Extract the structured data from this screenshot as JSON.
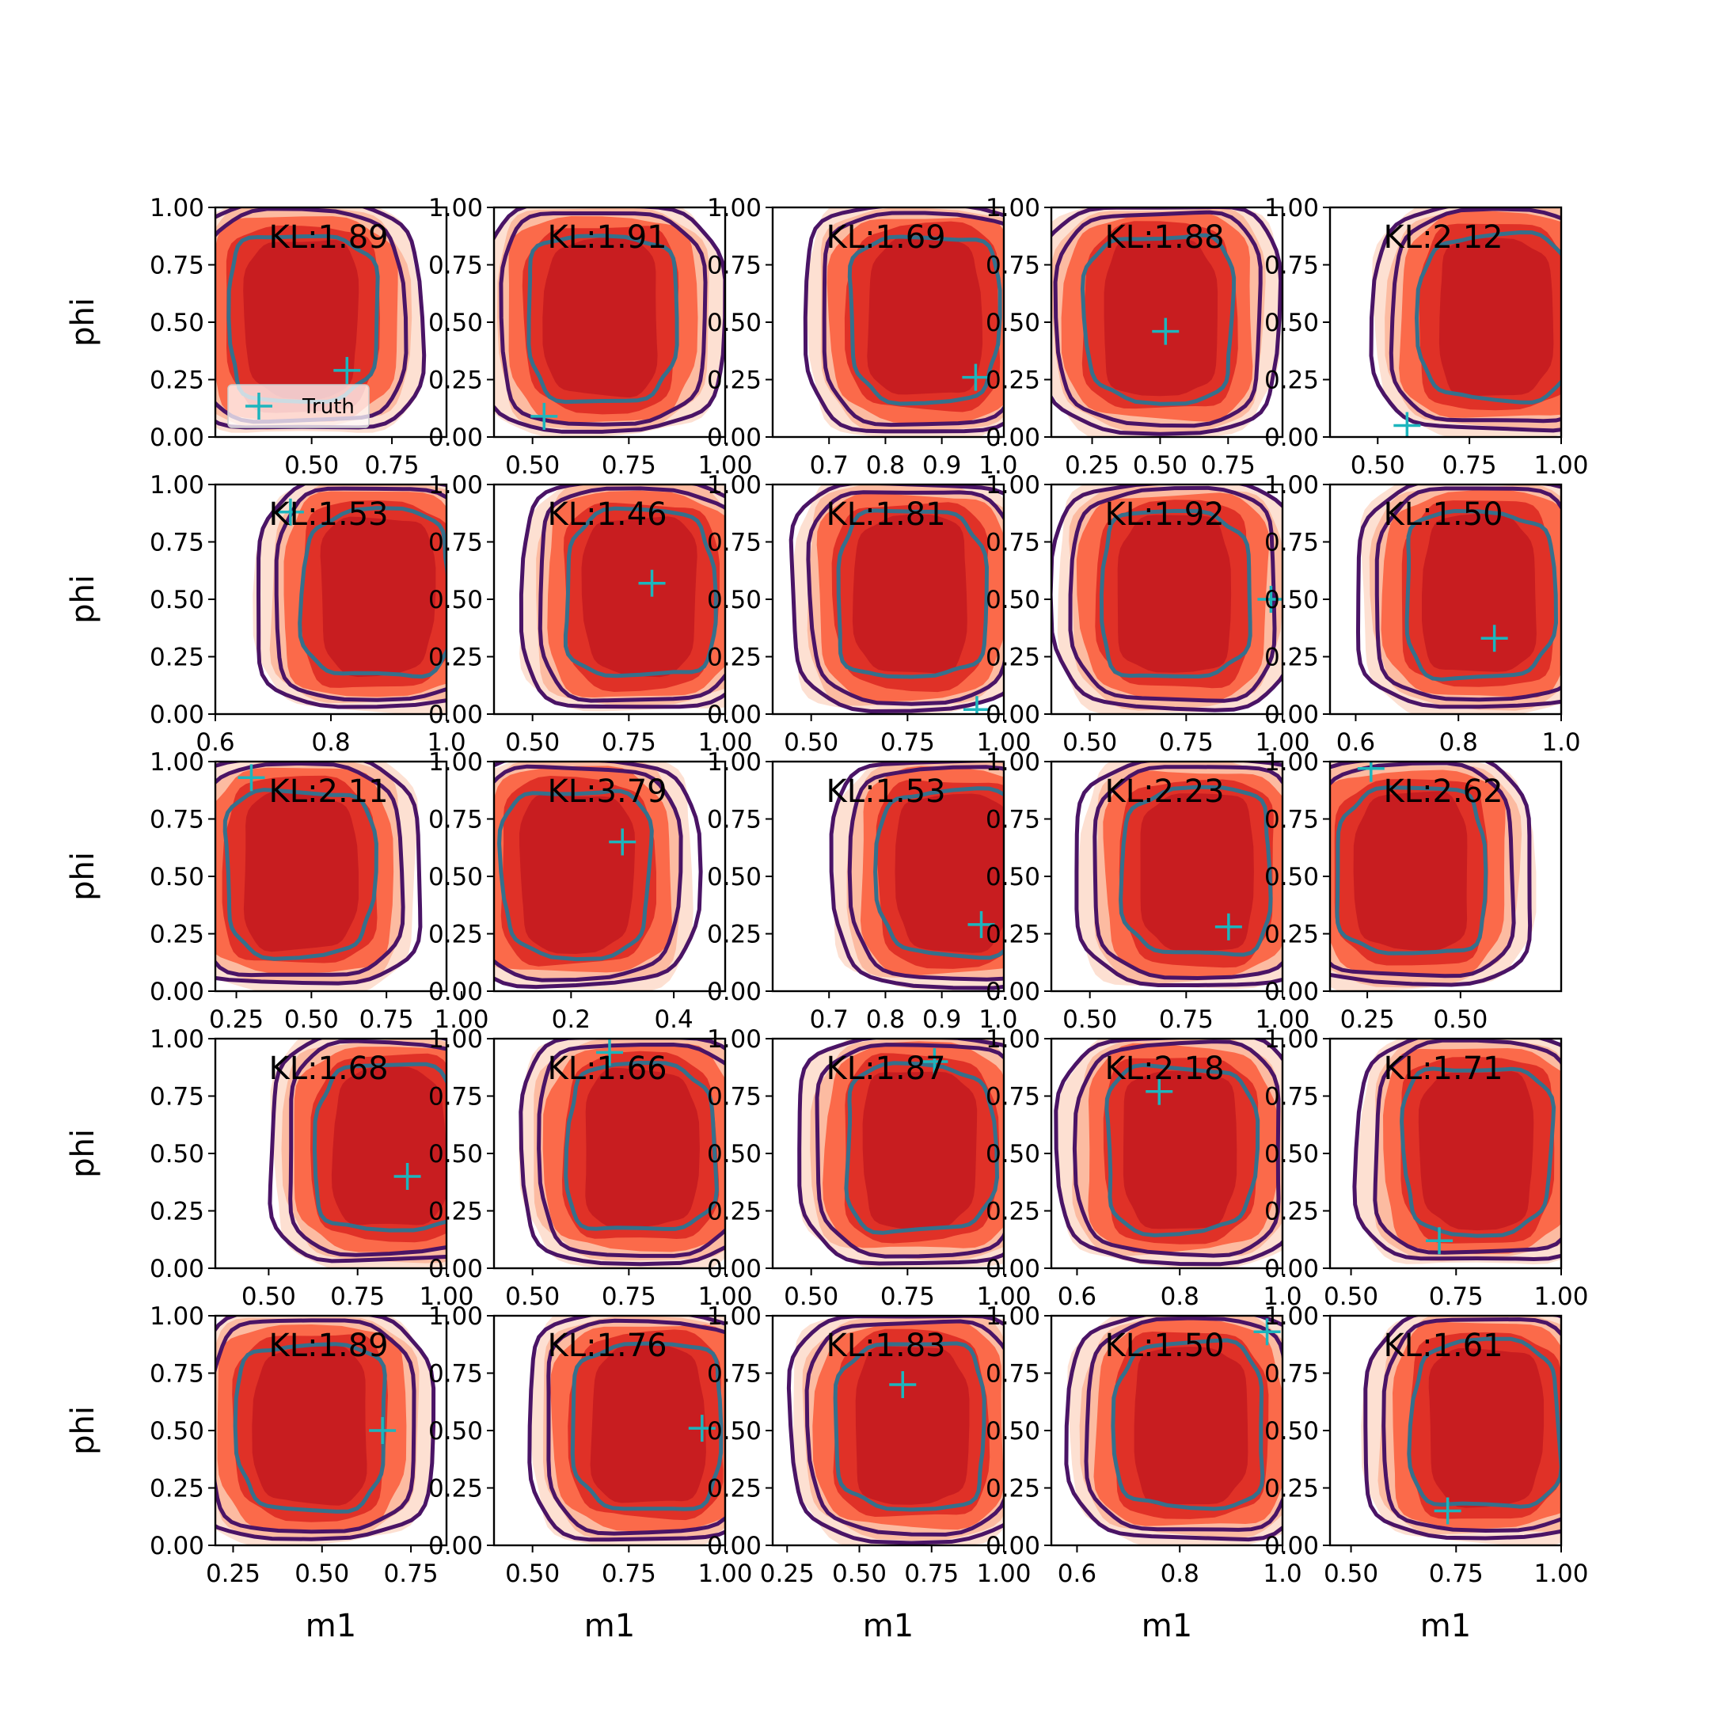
{
  "figure": {
    "xlabel": "m1",
    "ylabel": "phi",
    "legend_label": "Truth",
    "colors": {
      "fill_levels": [
        "#fde0d2",
        "#fcbba1",
        "#fb6a4a",
        "#e03127",
        "#c81d20"
      ],
      "outer_contours": "#4a1466",
      "inner_contour": "#35708c",
      "truth_marker": "#1cb5bd"
    }
  },
  "chart_data": [
    {
      "type": "contour",
      "panel": "1-1",
      "kl_label": "KL:1.89",
      "xlim": [
        0.2,
        0.92
      ],
      "ylim": [
        0,
        1
      ],
      "xticks": [
        "0.50",
        "0.75"
      ],
      "yticks": [
        "0.00",
        "0.25",
        "0.50",
        "0.75",
        "1.00"
      ],
      "truth": {
        "x": 0.61,
        "y": 0.29
      },
      "center": {
        "x": 0.47,
        "y": 0.52
      },
      "legend": "lower-left"
    },
    {
      "type": "contour",
      "panel": "1-2",
      "kl_label": "KL:1.91",
      "xlim": [
        0.4,
        1.0
      ],
      "ylim": [
        0,
        1
      ],
      "xticks": [
        "0.50",
        "0.75",
        "1.00"
      ],
      "yticks": [
        "0.00",
        "0.25",
        "0.50",
        "0.75",
        "1.00"
      ],
      "truth": {
        "x": 0.53,
        "y": 0.09
      },
      "center": {
        "x": 0.68,
        "y": 0.52
      }
    },
    {
      "type": "contour",
      "panel": "1-3",
      "kl_label": "KL:1.69",
      "xlim": [
        0.6,
        1.01
      ],
      "ylim": [
        0,
        1
      ],
      "xticks": [
        "0.7",
        "0.8",
        "0.9",
        "1.0"
      ],
      "yticks": [
        "0.00",
        "0.25",
        "0.50",
        "0.75",
        "1.00"
      ],
      "truth": {
        "x": 0.96,
        "y": 0.26
      },
      "center": {
        "x": 0.87,
        "y": 0.52
      }
    },
    {
      "type": "contour",
      "panel": "1-4",
      "kl_label": "KL:1.88",
      "xlim": [
        0.1,
        0.95
      ],
      "ylim": [
        0,
        1
      ],
      "xticks": [
        "0.25",
        "0.50",
        "0.75"
      ],
      "yticks": [
        "0.00",
        "0.25",
        "0.50",
        "0.75",
        "1.00"
      ],
      "truth": {
        "x": 0.52,
        "y": 0.46
      },
      "center": {
        "x": 0.5,
        "y": 0.52
      }
    },
    {
      "type": "contour",
      "panel": "1-5",
      "kl_label": "KL:2.12",
      "xlim": [
        0.37,
        1.0
      ],
      "ylim": [
        0,
        1
      ],
      "xticks": [
        "0.50",
        "0.75",
        "1.00"
      ],
      "yticks": [
        "0.00",
        "0.25",
        "0.50",
        "0.75",
        "1.00"
      ],
      "truth": {
        "x": 0.58,
        "y": 0.05
      },
      "center": {
        "x": 0.82,
        "y": 0.52
      }
    },
    {
      "type": "contour",
      "panel": "2-1",
      "kl_label": "KL:1.53",
      "xlim": [
        0.6,
        1.0
      ],
      "ylim": [
        0,
        1
      ],
      "xticks": [
        "0.6",
        "0.8",
        "1.0"
      ],
      "yticks": [
        "0.00",
        "0.25",
        "0.50",
        "0.75",
        "1.00"
      ],
      "truth": {
        "x": 0.73,
        "y": 0.88
      },
      "center": {
        "x": 0.88,
        "y": 0.52
      }
    },
    {
      "type": "contour",
      "panel": "2-2",
      "kl_label": "KL:1.46",
      "xlim": [
        0.4,
        1.0
      ],
      "ylim": [
        0,
        1
      ],
      "xticks": [
        "0.50",
        "0.75",
        "1.00"
      ],
      "yticks": [
        "0.00",
        "0.25",
        "0.50",
        "0.75",
        "1.00"
      ],
      "truth": {
        "x": 0.81,
        "y": 0.57
      },
      "center": {
        "x": 0.78,
        "y": 0.52
      }
    },
    {
      "type": "contour",
      "panel": "2-3",
      "kl_label": "KL:1.81",
      "xlim": [
        0.4,
        1.0
      ],
      "ylim": [
        0,
        1
      ],
      "xticks": [
        "0.50",
        "0.75",
        "1.00"
      ],
      "yticks": [
        "0.00",
        "0.25",
        "0.50",
        "0.75",
        "1.00"
      ],
      "truth": {
        "x": 0.93,
        "y": 0.02
      },
      "center": {
        "x": 0.76,
        "y": 0.52
      }
    },
    {
      "type": "contour",
      "panel": "2-4",
      "kl_label": "KL:1.92",
      "xlim": [
        0.4,
        1.0
      ],
      "ylim": [
        0,
        1
      ],
      "xticks": [
        "0.50",
        "0.75",
        "1.00"
      ],
      "yticks": [
        "0.00",
        "0.25",
        "0.50",
        "0.75",
        "1.00"
      ],
      "truth": {
        "x": 0.97,
        "y": 0.5
      },
      "center": {
        "x": 0.72,
        "y": 0.52
      }
    },
    {
      "type": "contour",
      "panel": "2-5",
      "kl_label": "KL:1.50",
      "xlim": [
        0.55,
        1.0
      ],
      "ylim": [
        0,
        1
      ],
      "xticks": [
        "0.6",
        "0.8",
        "1.0"
      ],
      "yticks": [
        "0.00",
        "0.25",
        "0.50",
        "0.75",
        "1.00"
      ],
      "truth": {
        "x": 0.87,
        "y": 0.33
      },
      "center": {
        "x": 0.84,
        "y": 0.52
      }
    },
    {
      "type": "contour",
      "panel": "3-1",
      "kl_label": "KL:2.11",
      "xlim": [
        0.18,
        0.95
      ],
      "ylim": [
        0,
        1
      ],
      "xticks": [
        "0.25",
        "0.50",
        "0.75",
        "1.00"
      ],
      "yticks": [
        "0.00",
        "0.25",
        "0.50",
        "0.75",
        "1.00"
      ],
      "truth": {
        "x": 0.3,
        "y": 0.93
      },
      "center": {
        "x": 0.46,
        "y": 0.52
      }
    },
    {
      "type": "contour",
      "panel": "3-2",
      "kl_label": "KL:3.79",
      "xlim": [
        0.05,
        0.5
      ],
      "ylim": [
        0,
        1
      ],
      "xticks": [
        "0.2",
        "0.4"
      ],
      "yticks": [
        "0.00",
        "0.25",
        "0.50",
        "0.75",
        "1.00"
      ],
      "truth": {
        "x": 0.3,
        "y": 0.65
      },
      "center": {
        "x": 0.21,
        "y": 0.52
      }
    },
    {
      "type": "contour",
      "panel": "3-3",
      "kl_label": "KL:1.53",
      "xlim": [
        0.6,
        1.01
      ],
      "ylim": [
        0,
        1
      ],
      "xticks": [
        "0.7",
        "0.8",
        "0.9",
        "1.0"
      ],
      "yticks": [
        "0.00",
        "0.25",
        "0.50",
        "0.75",
        "1.00"
      ],
      "truth": {
        "x": 0.97,
        "y": 0.29
      },
      "center": {
        "x": 0.92,
        "y": 0.52
      }
    },
    {
      "type": "contour",
      "panel": "3-4",
      "kl_label": "KL:2.23",
      "xlim": [
        0.4,
        1.0
      ],
      "ylim": [
        0,
        1
      ],
      "xticks": [
        "0.50",
        "0.75",
        "1.00"
      ],
      "yticks": [
        "0.00",
        "0.25",
        "0.50",
        "0.75",
        "1.00"
      ],
      "truth": {
        "x": 0.86,
        "y": 0.28
      },
      "center": {
        "x": 0.78,
        "y": 0.52
      }
    },
    {
      "type": "contour",
      "panel": "3-5",
      "kl_label": "KL:2.62",
      "xlim": [
        0.15,
        0.77
      ],
      "ylim": [
        0,
        1
      ],
      "xticks": [
        "0.25",
        "0.50"
      ],
      "yticks": [
        "0.00",
        "0.25",
        "0.50",
        "0.75",
        "1.00"
      ],
      "truth": {
        "x": 0.26,
        "y": 0.97
      },
      "center": {
        "x": 0.37,
        "y": 0.52
      }
    },
    {
      "type": "contour",
      "panel": "4-1",
      "kl_label": "KL:1.68",
      "xlim": [
        0.35,
        1.0
      ],
      "ylim": [
        0,
        1
      ],
      "xticks": [
        "0.50",
        "0.75",
        "1.00"
      ],
      "yticks": [
        "0.00",
        "0.25",
        "0.50",
        "0.75",
        "1.00"
      ],
      "truth": {
        "x": 0.89,
        "y": 0.4
      },
      "center": {
        "x": 0.84,
        "y": 0.52
      }
    },
    {
      "type": "contour",
      "panel": "4-2",
      "kl_label": "KL:1.66",
      "xlim": [
        0.4,
        1.0
      ],
      "ylim": [
        0,
        1
      ],
      "xticks": [
        "0.50",
        "0.75",
        "1.00"
      ],
      "yticks": [
        "0.00",
        "0.25",
        "0.50",
        "0.75",
        "1.00"
      ],
      "truth": {
        "x": 0.7,
        "y": 0.94
      },
      "center": {
        "x": 0.78,
        "y": 0.52
      }
    },
    {
      "type": "contour",
      "panel": "4-3",
      "kl_label": "KL:1.87",
      "xlim": [
        0.4,
        1.0
      ],
      "ylim": [
        0,
        1
      ],
      "xticks": [
        "0.50",
        "0.75",
        "1.00"
      ],
      "yticks": [
        "0.00",
        "0.25",
        "0.50",
        "0.75",
        "1.00"
      ],
      "truth": {
        "x": 0.82,
        "y": 0.9
      },
      "center": {
        "x": 0.78,
        "y": 0.52
      }
    },
    {
      "type": "contour",
      "panel": "4-4",
      "kl_label": "KL:2.18",
      "xlim": [
        0.55,
        1.0
      ],
      "ylim": [
        0,
        1
      ],
      "xticks": [
        "0.6",
        "0.8",
        "1.0"
      ],
      "yticks": [
        "0.00",
        "0.25",
        "0.50",
        "0.75",
        "1.00"
      ],
      "truth": {
        "x": 0.76,
        "y": 0.77
      },
      "center": {
        "x": 0.8,
        "y": 0.52
      }
    },
    {
      "type": "contour",
      "panel": "4-5",
      "kl_label": "KL:1.71",
      "xlim": [
        0.45,
        1.0
      ],
      "ylim": [
        0,
        1
      ],
      "xticks": [
        "0.50",
        "0.75",
        "1.00"
      ],
      "yticks": [
        "0.00",
        "0.25",
        "0.50",
        "0.75",
        "1.00"
      ],
      "truth": {
        "x": 0.71,
        "y": 0.12
      },
      "center": {
        "x": 0.8,
        "y": 0.52
      }
    },
    {
      "type": "contour",
      "panel": "5-1",
      "kl_label": "KL:1.89",
      "xlim": [
        0.2,
        0.85
      ],
      "ylim": [
        0,
        1
      ],
      "xticks": [
        "0.25",
        "0.50",
        "0.75"
      ],
      "yticks": [
        "0.00",
        "0.25",
        "0.50",
        "0.75",
        "1.00"
      ],
      "truth": {
        "x": 0.67,
        "y": 0.5
      },
      "center": {
        "x": 0.47,
        "y": 0.52
      }
    },
    {
      "type": "contour",
      "panel": "5-2",
      "kl_label": "KL:1.76",
      "xlim": [
        0.4,
        1.0
      ],
      "ylim": [
        0,
        1
      ],
      "xticks": [
        "0.50",
        "0.75",
        "1.00"
      ],
      "yticks": [
        "0.00",
        "0.25",
        "0.50",
        "0.75",
        "1.00"
      ],
      "truth": {
        "x": 0.94,
        "y": 0.51
      },
      "center": {
        "x": 0.8,
        "y": 0.52
      }
    },
    {
      "type": "contour",
      "panel": "5-3",
      "kl_label": "KL:1.83",
      "xlim": [
        0.2,
        1.0
      ],
      "ylim": [
        0,
        1
      ],
      "xticks": [
        "0.25",
        "0.50",
        "0.75",
        "1.00"
      ],
      "yticks": [
        "0.00",
        "0.25",
        "0.50",
        "0.75",
        "1.00"
      ],
      "truth": {
        "x": 0.65,
        "y": 0.7
      },
      "center": {
        "x": 0.68,
        "y": 0.52
      }
    },
    {
      "type": "contour",
      "panel": "5-4",
      "kl_label": "KL:1.50",
      "xlim": [
        0.55,
        1.0
      ],
      "ylim": [
        0,
        1
      ],
      "xticks": [
        "0.6",
        "0.8",
        "1.0"
      ],
      "yticks": [
        "0.00",
        "0.25",
        "0.50",
        "0.75",
        "1.00"
      ],
      "truth": {
        "x": 0.97,
        "y": 0.93
      },
      "center": {
        "x": 0.82,
        "y": 0.52
      }
    },
    {
      "type": "contour",
      "panel": "5-5",
      "kl_label": "KL:1.61",
      "xlim": [
        0.45,
        1.0
      ],
      "ylim": [
        0,
        1
      ],
      "xticks": [
        "0.50",
        "0.75",
        "1.00"
      ],
      "yticks": [
        "0.00",
        "0.25",
        "0.50",
        "0.75",
        "1.00"
      ],
      "truth": {
        "x": 0.73,
        "y": 0.15
      },
      "center": {
        "x": 0.82,
        "y": 0.52
      }
    }
  ]
}
